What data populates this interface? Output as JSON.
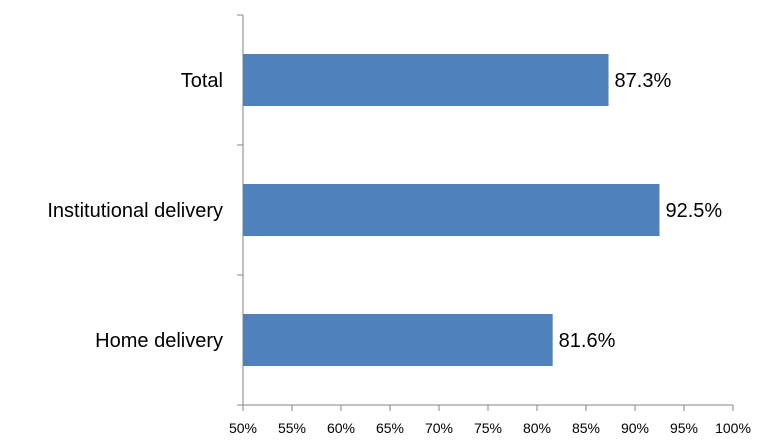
{
  "chart_data": {
    "type": "bar",
    "orientation": "horizontal",
    "title": "",
    "xlabel": "",
    "ylabel": "",
    "categories": [
      "Total",
      "Institutional delivery",
      "Home delivery"
    ],
    "values": [
      87.3,
      92.5,
      81.6
    ],
    "data_labels": [
      "87.3%",
      "92.5%",
      "81.6%"
    ],
    "xlim": [
      50,
      100
    ],
    "x_ticks": [
      50,
      55,
      60,
      65,
      70,
      75,
      80,
      85,
      90,
      95,
      100
    ],
    "x_tick_labels": [
      "50%",
      "55%",
      "60%",
      "65%",
      "70%",
      "75%",
      "80%",
      "85%",
      "90%",
      "95%",
      "100%"
    ],
    "grid": false,
    "legend": "none",
    "bar_color": "#4f81bd",
    "axis_color": "#868686"
  }
}
